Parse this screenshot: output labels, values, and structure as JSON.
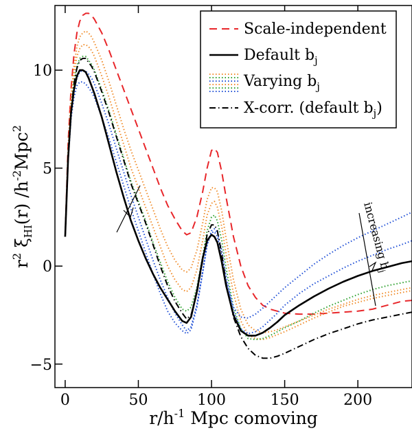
{
  "chart_data": {
    "type": "line",
    "xlabel": "r/h⁻¹  Mpc comoving",
    "ylabel": "r² ξ_HI(r) /h⁻²Mpc²",
    "xlim": [
      -7,
      237
    ],
    "ylim": [
      -6.2,
      13.3
    ],
    "xticks": [
      0,
      50,
      100,
      150,
      200
    ],
    "yticks": [
      -5,
      0,
      5,
      10
    ],
    "xtick_labels": [
      "0",
      "50",
      "100",
      "150",
      "200"
    ],
    "ytick_labels": [
      "−5",
      "0",
      "5",
      "10"
    ],
    "grid": false,
    "legend_position": "top-right",
    "legend": [
      {
        "label": "Scale-independent",
        "style": "dashed",
        "color": "#e8262a"
      },
      {
        "label": "Default b",
        "sub": "j",
        "style": "solid",
        "color": "#000000"
      },
      {
        "label": "Varying b",
        "sub": "j",
        "style": "dotted-multi",
        "colors": [
          "#f08c2a",
          "#2ca02c",
          "#1f4fd6"
        ]
      },
      {
        "label": "X-corr. (default b",
        "sub": "j",
        "suffix": ")",
        "style": "dash-dot",
        "color": "#000000"
      }
    ],
    "annotations": [
      {
        "text": "increasing b",
        "sub": "j"
      }
    ],
    "series": [
      {
        "style": "dashed",
        "color": "#e8262a",
        "x": [
          0,
          2,
          4,
          6,
          8,
          10,
          12,
          14,
          16,
          18,
          20,
          25,
          30,
          35,
          40,
          45,
          50,
          55,
          60,
          65,
          70,
          75,
          80,
          83,
          86,
          90,
          94,
          97,
          100,
          102,
          104,
          107,
          110,
          115,
          120,
          125,
          130,
          135,
          140,
          145,
          150,
          160,
          170,
          180,
          190,
          200,
          210,
          220,
          230,
          237
        ],
        "y": [
          1.5,
          6.3,
          9.0,
          10.8,
          11.9,
          12.5,
          12.8,
          12.9,
          12.9,
          12.8,
          12.6,
          11.9,
          11.0,
          10.0,
          9.0,
          8.0,
          7.0,
          6.0,
          5.0,
          4.0,
          3.1,
          2.4,
          1.8,
          1.6,
          1.7,
          2.5,
          3.8,
          5.0,
          5.9,
          6.0,
          5.8,
          4.8,
          3.5,
          1.5,
          0.0,
          -1.0,
          -1.6,
          -2.0,
          -2.2,
          -2.3,
          -2.4,
          -2.45,
          -2.45,
          -2.4,
          -2.35,
          -2.3,
          -2.2,
          -2.0,
          -1.8,
          -1.75
        ]
      },
      {
        "style": "dotted",
        "color": "#f08c2a",
        "x": [
          0,
          2,
          4,
          6,
          8,
          10,
          12,
          14,
          16,
          18,
          20,
          25,
          30,
          35,
          40,
          45,
          50,
          55,
          60,
          65,
          70,
          75,
          80,
          83,
          86,
          90,
          94,
          97,
          100,
          102,
          104,
          107,
          110,
          115,
          120,
          125,
          130,
          135,
          140,
          145,
          150,
          160,
          170,
          180,
          190,
          200,
          210,
          220,
          230,
          237
        ],
        "y": [
          1.5,
          6.0,
          8.6,
          10.2,
          11.2,
          11.7,
          11.9,
          12.0,
          11.9,
          11.7,
          11.4,
          10.5,
          9.4,
          8.2,
          7.0,
          5.9,
          4.9,
          3.9,
          2.9,
          1.9,
          1.0,
          0.3,
          -0.2,
          -0.3,
          -0.1,
          0.8,
          2.2,
          3.4,
          4.0,
          4.0,
          3.8,
          2.8,
          1.4,
          -0.7,
          -2.2,
          -3.0,
          -3.3,
          -3.4,
          -3.35,
          -3.25,
          -3.1,
          -2.8,
          -2.5,
          -2.2,
          -1.95,
          -1.7,
          -1.5,
          -1.35,
          -1.2,
          -1.1
        ]
      },
      {
        "style": "dotted",
        "color": "#f08c2a",
        "x": [
          0,
          2,
          4,
          6,
          8,
          10,
          12,
          14,
          16,
          18,
          20,
          25,
          30,
          35,
          40,
          45,
          50,
          55,
          60,
          65,
          70,
          75,
          80,
          83,
          86,
          90,
          94,
          97,
          100,
          102,
          104,
          107,
          110,
          115,
          120,
          125,
          130,
          135,
          140,
          145,
          150,
          160,
          170,
          180,
          190,
          200,
          210,
          220,
          230,
          237
        ],
        "y": [
          1.5,
          5.9,
          8.3,
          9.8,
          10.7,
          11.1,
          11.3,
          11.3,
          11.2,
          11.0,
          10.7,
          9.7,
          8.6,
          7.4,
          6.2,
          5.0,
          4.0,
          3.0,
          2.0,
          1.0,
          0.0,
          -0.7,
          -1.2,
          -1.3,
          -1.1,
          -0.2,
          1.3,
          2.6,
          3.2,
          3.3,
          3.0,
          2.0,
          0.6,
          -1.4,
          -2.8,
          -3.5,
          -3.7,
          -3.75,
          -3.65,
          -3.5,
          -3.35,
          -3.0,
          -2.65,
          -2.35,
          -2.05,
          -1.85,
          -1.65,
          -1.5,
          -1.35,
          -1.25
        ]
      },
      {
        "style": "dotted",
        "color": "#2ca02c",
        "x": [
          0,
          2,
          4,
          6,
          8,
          10,
          12,
          14,
          16,
          18,
          20,
          25,
          30,
          35,
          40,
          45,
          50,
          55,
          60,
          65,
          70,
          75,
          80,
          83,
          86,
          90,
          94,
          97,
          100,
          102,
          104,
          107,
          110,
          115,
          120,
          125,
          130,
          135,
          140,
          145,
          150,
          160,
          170,
          180,
          190,
          200,
          210,
          220,
          230,
          237
        ],
        "y": [
          1.5,
          5.7,
          8.0,
          9.4,
          10.2,
          10.6,
          10.7,
          10.7,
          10.5,
          10.3,
          10.0,
          9.0,
          7.9,
          6.7,
          5.5,
          4.3,
          3.3,
          2.3,
          1.2,
          0.2,
          -0.8,
          -1.6,
          -2.2,
          -2.3,
          -2.1,
          -1.1,
          0.5,
          1.8,
          2.5,
          2.6,
          2.3,
          1.3,
          -0.1,
          -2.1,
          -3.2,
          -3.7,
          -3.75,
          -3.7,
          -3.55,
          -3.35,
          -3.15,
          -2.8,
          -2.4,
          -2.05,
          -1.75,
          -1.45,
          -1.2,
          -1.0,
          -0.85,
          -0.75
        ]
      },
      {
        "style": "dotted",
        "color": "#1f4fd6",
        "x": [
          0,
          2,
          4,
          6,
          8,
          10,
          12,
          14,
          16,
          18,
          20,
          25,
          30,
          35,
          40,
          45,
          50,
          55,
          60,
          65,
          70,
          75,
          80,
          83,
          86,
          90,
          94,
          97,
          100,
          102,
          104,
          107,
          110,
          115,
          120,
          125,
          130,
          135,
          140,
          145,
          150,
          160,
          170,
          180,
          190,
          200,
          210,
          220,
          230,
          237
        ],
        "y": [
          1.5,
          5.5,
          7.7,
          8.9,
          9.6,
          9.9,
          10.0,
          9.95,
          9.8,
          9.6,
          9.3,
          8.3,
          7.2,
          6.0,
          4.8,
          3.6,
          2.5,
          1.4,
          0.3,
          -0.7,
          -1.6,
          -2.4,
          -3.0,
          -3.3,
          -3.1,
          -2.0,
          -0.3,
          1.1,
          1.8,
          1.9,
          1.7,
          0.8,
          -0.5,
          -2.3,
          -3.2,
          -3.45,
          -3.35,
          -3.1,
          -2.75,
          -2.4,
          -2.0,
          -1.4,
          -0.9,
          -0.5,
          -0.1,
          0.25,
          0.55,
          0.85,
          1.1,
          1.3
        ]
      },
      {
        "style": "dotted",
        "color": "#1f4fd6",
        "x": [
          0,
          2,
          4,
          6,
          8,
          10,
          12,
          14,
          16,
          18,
          20,
          25,
          30,
          35,
          40,
          45,
          50,
          55,
          60,
          65,
          70,
          75,
          80,
          83,
          86,
          90,
          94,
          97,
          100,
          102,
          104,
          107,
          110,
          115,
          120,
          125,
          130,
          135,
          140,
          145,
          150,
          160,
          170,
          180,
          190,
          200,
          210,
          220,
          230,
          237
        ],
        "y": [
          1.5,
          5.4,
          7.5,
          8.6,
          9.2,
          9.4,
          9.4,
          9.3,
          9.1,
          8.9,
          8.6,
          7.6,
          6.5,
          5.3,
          4.1,
          2.9,
          1.8,
          0.7,
          -0.4,
          -1.4,
          -2.3,
          -2.9,
          -3.3,
          -3.45,
          -3.25,
          -2.1,
          -0.3,
          1.1,
          1.7,
          1.75,
          1.5,
          0.5,
          -0.8,
          -2.1,
          -2.6,
          -2.65,
          -2.45,
          -2.15,
          -1.8,
          -1.45,
          -1.1,
          -0.5,
          0.1,
          0.6,
          1.05,
          1.45,
          1.8,
          2.15,
          2.5,
          2.75
        ]
      },
      {
        "style": "dash-dot",
        "color": "#000000",
        "x": [
          0,
          2,
          4,
          6,
          8,
          10,
          12,
          14,
          16,
          18,
          20,
          25,
          30,
          35,
          40,
          45,
          50,
          55,
          60,
          65,
          70,
          75,
          80,
          83,
          86,
          90,
          94,
          97,
          100,
          102,
          104,
          107,
          110,
          115,
          120,
          125,
          130,
          135,
          140,
          145,
          150,
          160,
          170,
          180,
          190,
          200,
          210,
          220,
          230,
          237
        ],
        "y": [
          1.5,
          5.6,
          7.9,
          9.3,
          10.1,
          10.5,
          10.6,
          10.6,
          10.4,
          10.2,
          9.9,
          8.9,
          7.8,
          6.6,
          5.4,
          4.2,
          3.2,
          2.2,
          1.1,
          0.0,
          -1.0,
          -1.8,
          -2.4,
          -2.7,
          -2.5,
          -1.4,
          0.3,
          1.6,
          2.1,
          2.1,
          1.8,
          0.6,
          -0.9,
          -2.6,
          -3.6,
          -4.2,
          -4.55,
          -4.7,
          -4.7,
          -4.6,
          -4.45,
          -4.1,
          -3.75,
          -3.45,
          -3.2,
          -2.95,
          -2.75,
          -2.6,
          -2.45,
          -2.35
        ]
      },
      {
        "style": "solid",
        "color": "#000000",
        "x": [
          0,
          2,
          4,
          6,
          8,
          10,
          12,
          14,
          16,
          18,
          20,
          25,
          30,
          35,
          40,
          45,
          50,
          55,
          60,
          65,
          70,
          75,
          80,
          83,
          86,
          90,
          94,
          97,
          100,
          102,
          104,
          107,
          110,
          115,
          120,
          125,
          130,
          135,
          140,
          145,
          150,
          160,
          170,
          180,
          190,
          200,
          210,
          220,
          230,
          237
        ],
        "y": [
          1.5,
          5.5,
          7.8,
          9.0,
          9.7,
          10.0,
          10.0,
          9.9,
          9.6,
          9.2,
          8.8,
          7.6,
          6.2,
          4.8,
          3.5,
          2.3,
          1.3,
          0.4,
          -0.4,
          -1.1,
          -1.7,
          -2.3,
          -2.8,
          -2.9,
          -2.6,
          -1.3,
          0.4,
          1.3,
          1.6,
          1.5,
          1.2,
          0.2,
          -1.0,
          -2.5,
          -3.3,
          -3.55,
          -3.55,
          -3.4,
          -3.15,
          -2.85,
          -2.5,
          -2.0,
          -1.55,
          -1.15,
          -0.8,
          -0.5,
          -0.25,
          -0.05,
          0.15,
          0.25
        ]
      }
    ]
  }
}
